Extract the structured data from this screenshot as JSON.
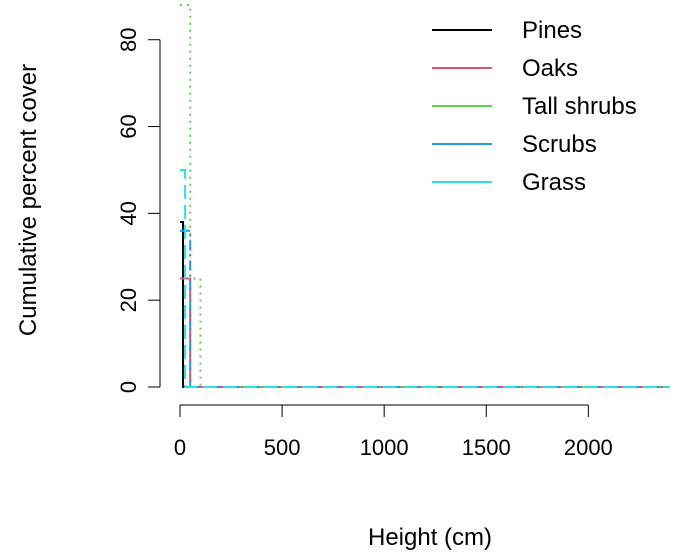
{
  "chart_data": {
    "type": "line",
    "title": "",
    "xlabel": "Height (cm)",
    "ylabel": "Cumulative percent cover",
    "xlim": [
      0,
      2400
    ],
    "ylim": [
      0,
      88
    ],
    "x_ticks": [
      0,
      500,
      1000,
      1500,
      2000
    ],
    "x_tick_labels": [
      "0",
      "500",
      "1000",
      "1500",
      "2000"
    ],
    "y_ticks": [
      0,
      20,
      40,
      60,
      80
    ],
    "y_tick_labels": [
      "0",
      "20",
      "40",
      "60",
      "80"
    ],
    "grid": false,
    "legend_position": "top-right",
    "series": [
      {
        "name": "Pines",
        "color": "#000000",
        "dash": "solid",
        "x": [
          0,
          15,
          15,
          2400
        ],
        "y": [
          38,
          38,
          0,
          0
        ]
      },
      {
        "name": "Oaks",
        "color": "#df536b",
        "dash": "long-dash",
        "x": [
          0,
          50,
          50,
          2400
        ],
        "y": [
          25,
          25,
          0,
          0
        ]
      },
      {
        "name": "Tall shrubs",
        "color": "#61d04f",
        "dash": "dotted",
        "x": [
          0,
          50,
          50,
          100,
          100,
          2400
        ],
        "y": [
          88,
          88,
          25,
          25,
          0,
          0
        ]
      },
      {
        "name": "Scrubs",
        "color": "#2297e6",
        "dash": "dash-dot",
        "x": [
          0,
          50,
          50,
          2400
        ],
        "y": [
          36,
          36,
          0,
          0
        ]
      },
      {
        "name": "Grass",
        "color": "#28e2e5",
        "dash": "long-dash",
        "x": [
          0,
          25,
          25,
          2400
        ],
        "y": [
          50,
          50,
          0,
          0
        ]
      }
    ]
  }
}
